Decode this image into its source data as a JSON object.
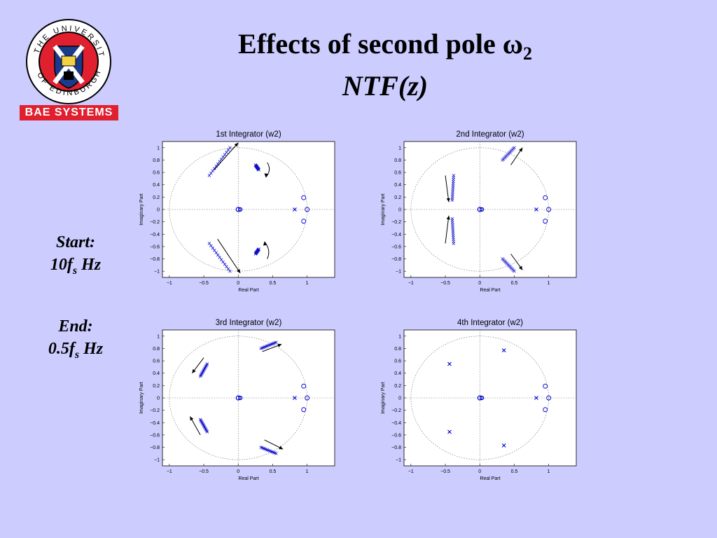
{
  "slide": {
    "title_main": "Effects of second pole ω",
    "title_sub_index": "2",
    "subtitle": "NTF(z)",
    "start_label": "Start:",
    "start_value": "10f",
    "start_sub": "s",
    "start_unit": " Hz",
    "end_label": "End:",
    "end_value": "0.5f",
    "end_sub": "s",
    "end_unit": " Hz",
    "logo_text": "THE UNIVERSITY OF EDINBURGH",
    "brand": "BAE SYSTEMS",
    "colors": {
      "background": "#ccccff",
      "brand_red": "#e0202f",
      "plot_blue": "#0000cc"
    }
  },
  "chart_data": [
    {
      "type": "scatter",
      "title": "1st Integrator (w2)",
      "xlabel": "Real Part",
      "ylabel": "Imaginary Part",
      "xlim": [
        -1.1,
        1.4
      ],
      "ylim": [
        -1.1,
        1.1
      ],
      "grid": false,
      "unit_circle": true,
      "xticks": [
        -1,
        -0.5,
        0,
        0.5,
        1
      ],
      "yticks": [
        1,
        0.8,
        0.6,
        0.4,
        0.2,
        0,
        -0.2,
        -0.4,
        -0.6,
        -0.8,
        -1
      ],
      "zeros": [
        [
          0.95,
          0.19
        ],
        [
          1,
          0
        ],
        [
          0.95,
          -0.19
        ]
      ],
      "poles_single": [
        [
          0.82,
          0
        ]
      ],
      "pole_traj": [
        [
          [
            -0.42,
            0.55
          ],
          [
            -0.12,
            1.0
          ]
        ],
        [
          [
            0.25,
            0.72
          ],
          [
            0.3,
            0.64
          ]
        ],
        [
          [
            -0.42,
            -0.55
          ],
          [
            -0.12,
            -1.0
          ]
        ],
        [
          [
            0.25,
            -0.72
          ],
          [
            0.3,
            -0.64
          ]
        ]
      ],
      "arrows": [
        [
          [
            -0.35,
            0.64
          ],
          [
            0,
            1.08
          ]
        ],
        [
          [
            0.42,
            0.76
          ],
          [
            0.4,
            0.52
          ],
          "ccw"
        ],
        [
          [
            -0.3,
            -0.48
          ],
          [
            0.03,
            -1.03
          ]
        ],
        [
          [
            0.42,
            -0.8
          ],
          [
            0.38,
            -0.52
          ],
          "cw"
        ]
      ]
    },
    {
      "type": "scatter",
      "title": "2nd Integrator (w2)",
      "xlabel": "Real Part",
      "ylabel": "Imaginary Part",
      "xlim": [
        -1.1,
        1.4
      ],
      "ylim": [
        -1.1,
        1.1
      ],
      "grid": false,
      "unit_circle": true,
      "xticks": [
        -1,
        -0.5,
        0,
        0.5,
        1
      ],
      "yticks": [
        1,
        0.8,
        0.6,
        0.4,
        0.2,
        0,
        -0.2,
        -0.4,
        -0.6,
        -0.8,
        -1
      ],
      "zeros": [
        [
          0.95,
          0.19
        ],
        [
          1,
          0
        ],
        [
          0.95,
          -0.19
        ]
      ],
      "poles_single": [
        [
          0.82,
          0
        ]
      ],
      "pole_traj": [
        [
          [
            0.33,
            0.8
          ],
          [
            0.5,
            1.0
          ]
        ],
        [
          [
            -0.38,
            0.55
          ],
          [
            -0.4,
            0.15
          ]
        ],
        [
          [
            -0.38,
            -0.55
          ],
          [
            -0.4,
            -0.15
          ]
        ],
        [
          [
            0.33,
            -0.8
          ],
          [
            0.5,
            -1.0
          ]
        ]
      ],
      "arrows": [
        [
          [
            0.45,
            0.72
          ],
          [
            0.62,
            1.0
          ]
        ],
        [
          [
            -0.5,
            0.55
          ],
          [
            -0.45,
            0.12
          ]
        ],
        [
          [
            -0.5,
            -0.55
          ],
          [
            -0.45,
            -0.1
          ]
        ],
        [
          [
            0.45,
            -0.72
          ],
          [
            0.62,
            -0.98
          ]
        ]
      ]
    },
    {
      "type": "scatter",
      "title": "3rd Integrator (w2)",
      "xlabel": "Real Part",
      "ylabel": "Imaginary Part",
      "xlim": [
        -1.1,
        1.4
      ],
      "ylim": [
        -1.1,
        1.1
      ],
      "grid": false,
      "unit_circle": true,
      "xticks": [
        -1,
        -0.5,
        0,
        0.5,
        1
      ],
      "yticks": [
        1,
        0.8,
        0.6,
        0.4,
        0.2,
        0,
        -0.2,
        -0.4,
        -0.6,
        -0.8,
        -1
      ],
      "zeros": [
        [
          0.95,
          0.19
        ],
        [
          1,
          0
        ],
        [
          0.95,
          -0.19
        ]
      ],
      "poles_single": [
        [
          0.82,
          0
        ]
      ],
      "pole_traj": [
        [
          [
            0.33,
            0.8
          ],
          [
            0.55,
            0.9
          ]
        ],
        [
          [
            -0.55,
            0.35
          ],
          [
            -0.45,
            0.55
          ]
        ],
        [
          [
            -0.55,
            -0.35
          ],
          [
            -0.45,
            -0.55
          ]
        ],
        [
          [
            0.33,
            -0.8
          ],
          [
            0.55,
            -0.9
          ]
        ]
      ],
      "arrows": [
        [
          [
            0.35,
            0.75
          ],
          [
            0.63,
            0.87
          ]
        ],
        [
          [
            -0.5,
            0.65
          ],
          [
            -0.67,
            0.4
          ]
        ],
        [
          [
            -0.55,
            -0.6
          ],
          [
            -0.7,
            -0.3
          ]
        ],
        [
          [
            0.38,
            -0.68
          ],
          [
            0.65,
            -0.83
          ]
        ]
      ]
    },
    {
      "type": "scatter",
      "title": "4th Integrator (w2)",
      "xlabel": "Real Part",
      "ylabel": "Imaginary Part",
      "xlim": [
        -1.1,
        1.4
      ],
      "ylim": [
        -1.1,
        1.1
      ],
      "grid": false,
      "unit_circle": true,
      "xticks": [
        -1,
        -0.5,
        0,
        0.5,
        1
      ],
      "yticks": [
        1,
        0.8,
        0.6,
        0.4,
        0.2,
        0,
        -0.2,
        -0.4,
        -0.6,
        -0.8,
        -1
      ],
      "zeros": [
        [
          0.95,
          0.19
        ],
        [
          1,
          0
        ],
        [
          0.95,
          -0.19
        ]
      ],
      "poles_single": [
        [
          0.82,
          0
        ],
        [
          -0.44,
          0.55
        ],
        [
          -0.44,
          -0.55
        ],
        [
          0.35,
          0.77
        ],
        [
          0.35,
          -0.77
        ]
      ],
      "pole_traj": [],
      "arrows": []
    }
  ]
}
